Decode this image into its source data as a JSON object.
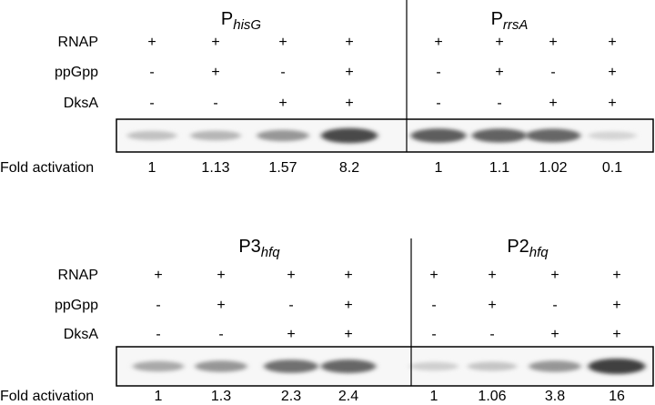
{
  "panels": [
    {
      "row_labels": [
        "RNAP",
        "ppGpp",
        "DksA"
      ],
      "fold_label": "Fold activation",
      "promoters": [
        {
          "title": {
            "main": "P",
            "sub": "hisG"
          },
          "rows": [
            [
              "+",
              "+",
              "+",
              "+"
            ],
            [
              "-",
              "+",
              "-",
              "+"
            ],
            [
              "-",
              "-",
              "+",
              "+"
            ]
          ],
          "fold": [
            "1",
            "1.13",
            "1.57",
            "8.2"
          ]
        },
        {
          "title": {
            "main": "P",
            "sub": "rrsA"
          },
          "rows": [
            [
              "+",
              "+",
              "+",
              "+"
            ],
            [
              "-",
              "+",
              "-",
              "+"
            ],
            [
              "-",
              "-",
              "+",
              "+"
            ]
          ],
          "fold": [
            "1",
            "1.1",
            "1.02",
            "0.1"
          ]
        }
      ]
    },
    {
      "row_labels": [
        "RNAP",
        "ppGpp",
        "DksA"
      ],
      "fold_label": "Fold activation",
      "promoters": [
        {
          "title": {
            "main": "P3",
            "sub": "hfq"
          },
          "rows": [
            [
              "+",
              "+",
              "+",
              "+"
            ],
            [
              "-",
              "+",
              "-",
              "+"
            ],
            [
              "-",
              "-",
              "+",
              "+"
            ]
          ],
          "fold": [
            "1",
            "1.3",
            "2.3",
            "2.4"
          ]
        },
        {
          "title": {
            "main": "P2",
            "sub": "hfq"
          },
          "rows": [
            [
              "+",
              "+",
              "+",
              "+"
            ],
            [
              "-",
              "+",
              "-",
              "+"
            ],
            [
              "-",
              "-",
              "+",
              "+"
            ]
          ],
          "fold": [
            "1",
            "1.06",
            "3.8",
            "16"
          ]
        }
      ]
    }
  ]
}
